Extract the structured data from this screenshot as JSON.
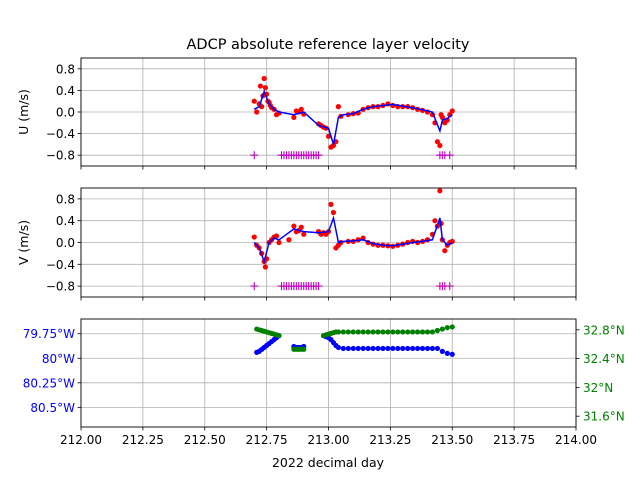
{
  "title": "ADCP absolute reference layer velocity",
  "xlabel": "2022 decimal day",
  "colors": {
    "raw": "#ff0000",
    "smooth": "#0000ff",
    "flag": "#bf00bf",
    "lon": "#0000ff",
    "lat": "#008000",
    "grid": "#b0b0b0"
  },
  "chart_data": [
    {
      "type": "scatter",
      "ylabel": "U (m/s)",
      "xlim": [
        212.0,
        214.0
      ],
      "ylim": [
        -1.0,
        1.0
      ],
      "yticks": [
        0.8,
        0.4,
        0.0,
        -0.4,
        -0.8
      ],
      "ytick_labels": [
        "0.8",
        "0.4",
        "0.0",
        "−0.4",
        "−0.8"
      ],
      "grid": true,
      "series": [
        {
          "role": "raw points (red dots)",
          "x": [
            212.7,
            212.71,
            212.72,
            212.725,
            212.73,
            212.735,
            212.74,
            212.745,
            212.75,
            212.755,
            212.76,
            212.765,
            212.77,
            212.78,
            212.79,
            212.8,
            212.86,
            212.87,
            212.88,
            212.89,
            212.9,
            212.96,
            212.97,
            212.98,
            212.99,
            213.0,
            213.01,
            213.02,
            213.03,
            213.04,
            213.05,
            213.08,
            213.1,
            213.12,
            213.14,
            213.16,
            213.18,
            213.2,
            213.22,
            213.24,
            213.26,
            213.28,
            213.3,
            213.32,
            213.34,
            213.36,
            213.38,
            213.4,
            213.42,
            213.43,
            213.44,
            213.45,
            213.455,
            213.46,
            213.47,
            213.48,
            213.49,
            213.5
          ],
          "y": [
            0.2,
            0.0,
            0.15,
            0.48,
            0.1,
            0.3,
            0.62,
            0.45,
            0.33,
            0.2,
            0.18,
            0.12,
            0.08,
            0.05,
            -0.05,
            -0.02,
            -0.1,
            0.02,
            0.0,
            0.05,
            -0.04,
            -0.22,
            -0.25,
            -0.28,
            -0.3,
            -0.45,
            -0.65,
            -0.62,
            -0.55,
            0.1,
            -0.08,
            -0.05,
            -0.03,
            -0.02,
            0.05,
            0.08,
            0.1,
            0.1,
            0.12,
            0.15,
            0.12,
            0.1,
            0.1,
            0.1,
            0.08,
            0.05,
            0.03,
            0.0,
            -0.05,
            -0.2,
            -0.55,
            -0.62,
            -0.05,
            -0.1,
            -0.2,
            -0.15,
            -0.05,
            0.02
          ]
        },
        {
          "role": "smoothed line (blue)",
          "x": [
            212.7,
            212.72,
            212.74,
            212.76,
            212.78,
            212.8,
            212.86,
            212.9,
            212.96,
            213.0,
            213.02,
            213.04,
            213.06,
            213.1,
            213.14,
            213.18,
            213.22,
            213.26,
            213.3,
            213.34,
            213.38,
            213.42,
            213.45,
            213.46,
            213.48,
            213.5
          ],
          "y": [
            0.05,
            0.1,
            0.38,
            0.15,
            0.05,
            0.0,
            -0.05,
            0.0,
            -0.25,
            -0.3,
            -0.6,
            -0.1,
            -0.05,
            -0.03,
            0.05,
            0.1,
            0.12,
            0.14,
            0.11,
            0.08,
            0.04,
            0.0,
            -0.35,
            -0.15,
            -0.12,
            -0.05
          ]
        },
        {
          "role": "flag markers (magenta +)",
          "x": [
            212.7,
            212.81,
            212.82,
            212.83,
            212.84,
            212.85,
            212.86,
            212.87,
            212.88,
            212.89,
            212.9,
            212.91,
            212.92,
            212.93,
            212.94,
            212.95,
            212.96,
            213.45,
            213.46,
            213.47,
            213.49
          ],
          "y": [
            -0.8,
            -0.8,
            -0.8,
            -0.8,
            -0.8,
            -0.8,
            -0.8,
            -0.8,
            -0.8,
            -0.8,
            -0.8,
            -0.8,
            -0.8,
            -0.8,
            -0.8,
            -0.8,
            -0.8,
            -0.8,
            -0.8,
            -0.8,
            -0.8
          ]
        }
      ]
    },
    {
      "type": "scatter",
      "ylabel": "V (m/s)",
      "xlim": [
        212.0,
        214.0
      ],
      "ylim": [
        -1.0,
        1.0
      ],
      "yticks": [
        0.8,
        0.4,
        0.0,
        -0.4,
        -0.8
      ],
      "ytick_labels": [
        "0.8",
        "0.4",
        "0.0",
        "−0.4",
        "−0.8"
      ],
      "grid": true,
      "series": [
        {
          "role": "raw points (red dots)",
          "x": [
            212.7,
            212.71,
            212.72,
            212.73,
            212.74,
            212.745,
            212.75,
            212.76,
            212.77,
            212.78,
            212.79,
            212.8,
            212.84,
            212.86,
            212.87,
            212.88,
            212.89,
            212.9,
            212.96,
            212.97,
            212.98,
            212.99,
            213.0,
            213.01,
            213.02,
            213.03,
            213.04,
            213.05,
            213.08,
            213.1,
            213.12,
            213.14,
            213.16,
            213.18,
            213.2,
            213.22,
            213.24,
            213.26,
            213.28,
            213.3,
            213.32,
            213.34,
            213.36,
            213.38,
            213.4,
            213.42,
            213.43,
            213.44,
            213.45,
            213.455,
            213.46,
            213.47,
            213.48,
            213.49,
            213.5
          ],
          "y": [
            0.1,
            -0.05,
            -0.1,
            -0.2,
            -0.35,
            -0.45,
            -0.3,
            0.0,
            0.05,
            0.1,
            0.12,
            0.0,
            0.05,
            0.3,
            0.2,
            0.22,
            0.28,
            0.15,
            0.2,
            0.15,
            0.18,
            0.15,
            0.2,
            0.7,
            0.55,
            -0.1,
            -0.05,
            0.0,
            0.02,
            0.02,
            0.05,
            0.08,
            0.0,
            -0.03,
            -0.05,
            -0.05,
            -0.06,
            -0.07,
            -0.05,
            -0.03,
            0.0,
            0.02,
            0.0,
            0.02,
            0.05,
            0.15,
            0.4,
            0.3,
            0.95,
            0.35,
            0.05,
            -0.15,
            -0.05,
            0.0,
            0.02
          ]
        },
        {
          "role": "smoothed line (blue)",
          "x": [
            212.7,
            212.72,
            212.74,
            212.76,
            212.78,
            212.8,
            212.86,
            212.9,
            212.96,
            213.0,
            213.02,
            213.04,
            213.06,
            213.1,
            213.14,
            213.18,
            213.22,
            213.26,
            213.3,
            213.34,
            213.38,
            213.42,
            213.45,
            213.46,
            213.48,
            213.5
          ],
          "y": [
            0.0,
            -0.1,
            -0.35,
            0.0,
            0.08,
            0.05,
            0.25,
            0.2,
            0.18,
            0.2,
            0.45,
            0.0,
            0.02,
            0.03,
            0.05,
            -0.02,
            -0.05,
            -0.06,
            -0.03,
            0.0,
            0.02,
            0.05,
            0.45,
            0.05,
            -0.05,
            0.0
          ]
        },
        {
          "role": "flag markers (magenta +)",
          "x": [
            212.7,
            212.81,
            212.82,
            212.83,
            212.84,
            212.85,
            212.86,
            212.87,
            212.88,
            212.89,
            212.9,
            212.91,
            212.92,
            212.93,
            212.94,
            212.95,
            212.96,
            213.45,
            213.46,
            213.47,
            213.49
          ],
          "y": [
            -0.8,
            -0.8,
            -0.8,
            -0.8,
            -0.8,
            -0.8,
            -0.8,
            -0.8,
            -0.8,
            -0.8,
            -0.8,
            -0.8,
            -0.8,
            -0.8,
            -0.8,
            -0.8,
            -0.8,
            -0.8,
            -0.8,
            -0.8,
            -0.8
          ]
        }
      ]
    },
    {
      "type": "scatter",
      "xlim": [
        212.0,
        214.0
      ],
      "ylim_left": [
        -80.7,
        -79.6
      ],
      "ylim_right": [
        31.45,
        32.95
      ],
      "yticks_left": [
        -79.75,
        -80.0,
        -80.25,
        -80.5
      ],
      "ytick_labels_left": [
        "79.75°W",
        "80°W",
        "80.25°W",
        "80.5°W"
      ],
      "yticks_right": [
        32.8,
        32.4,
        32.0,
        31.6
      ],
      "ytick_labels_right": [
        "32.8°N",
        "32.4°N",
        "32°N",
        "31.6°N"
      ],
      "xticks": [
        212.0,
        212.25,
        212.5,
        212.75,
        213.0,
        213.25,
        213.5,
        213.75,
        214.0
      ],
      "xtick_labels": [
        "212.00",
        "212.25",
        "212.50",
        "212.75",
        "213.00",
        "213.25",
        "213.50",
        "213.75",
        "214.00"
      ],
      "grid": true,
      "series": [
        {
          "role": "longitude (blue dots, left axis)",
          "axis": "left",
          "x": [
            212.71,
            212.72,
            212.73,
            212.74,
            212.75,
            212.76,
            212.77,
            212.78,
            212.79,
            212.8,
            212.86,
            212.87,
            212.88,
            212.89,
            212.9,
            212.98,
            212.99,
            213.0,
            213.01,
            213.02,
            213.03,
            213.04,
            213.06,
            213.08,
            213.1,
            213.12,
            213.14,
            213.16,
            213.18,
            213.2,
            213.22,
            213.24,
            213.26,
            213.28,
            213.3,
            213.32,
            213.34,
            213.36,
            213.38,
            213.4,
            213.42,
            213.44,
            213.46,
            213.48,
            213.5
          ],
          "y": [
            -79.94,
            -79.93,
            -79.91,
            -79.89,
            -79.87,
            -79.85,
            -79.83,
            -79.81,
            -79.79,
            -79.77,
            -79.88,
            -79.89,
            -79.89,
            -79.89,
            -79.88,
            -79.77,
            -79.78,
            -79.79,
            -79.81,
            -79.84,
            -79.87,
            -79.89,
            -79.9,
            -79.9,
            -79.9,
            -79.9,
            -79.9,
            -79.9,
            -79.9,
            -79.9,
            -79.9,
            -79.9,
            -79.9,
            -79.9,
            -79.9,
            -79.9,
            -79.9,
            -79.9,
            -79.9,
            -79.9,
            -79.9,
            -79.9,
            -79.93,
            -79.95,
            -79.96
          ]
        },
        {
          "role": "latitude (green dots, right axis)",
          "axis": "right",
          "x": [
            212.71,
            212.72,
            212.73,
            212.74,
            212.75,
            212.76,
            212.77,
            212.78,
            212.79,
            212.8,
            212.86,
            212.87,
            212.88,
            212.89,
            212.9,
            212.98,
            212.99,
            213.0,
            213.01,
            213.02,
            213.03,
            213.04,
            213.06,
            213.08,
            213.1,
            213.12,
            213.14,
            213.16,
            213.18,
            213.2,
            213.22,
            213.24,
            213.26,
            213.28,
            213.3,
            213.32,
            213.34,
            213.36,
            213.38,
            213.4,
            213.42,
            213.44,
            213.46,
            213.48,
            213.5
          ],
          "y": [
            32.81,
            32.8,
            32.79,
            32.78,
            32.77,
            32.76,
            32.75,
            32.74,
            32.73,
            32.72,
            32.53,
            32.53,
            32.53,
            32.53,
            32.53,
            32.72,
            32.73,
            32.74,
            32.75,
            32.76,
            32.77,
            32.77,
            32.77,
            32.77,
            32.77,
            32.77,
            32.77,
            32.77,
            32.77,
            32.77,
            32.77,
            32.77,
            32.77,
            32.77,
            32.77,
            32.77,
            32.77,
            32.77,
            32.77,
            32.77,
            32.77,
            32.79,
            32.81,
            32.83,
            32.84
          ]
        }
      ]
    }
  ]
}
